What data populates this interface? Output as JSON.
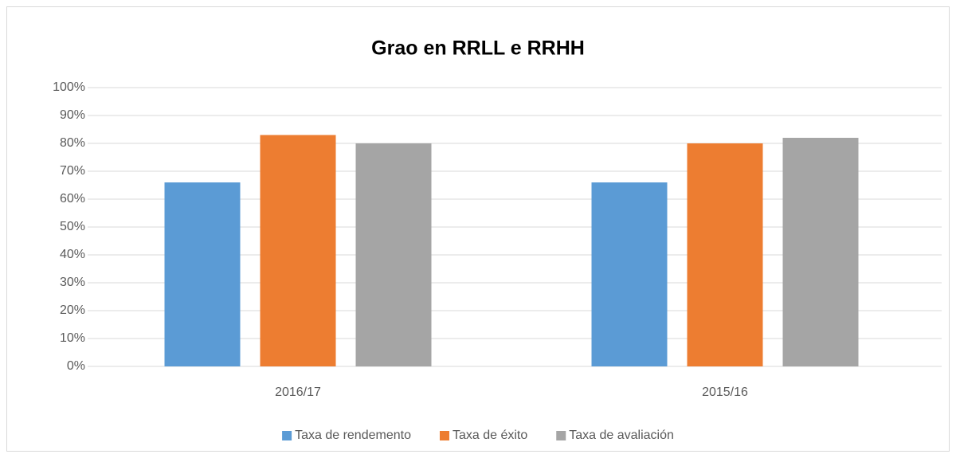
{
  "chart_data": {
    "type": "bar",
    "title": "Grao en RRLL e RRHH",
    "categories": [
      "2016/17",
      "2015/16"
    ],
    "series": [
      {
        "name": "Taxa de rendemento",
        "color": "#5b9bd5",
        "values": [
          66,
          66
        ]
      },
      {
        "name": "Taxa de éxito",
        "color": "#ed7d31",
        "values": [
          83,
          80
        ]
      },
      {
        "name": "Taxa de avaliación",
        "color": "#a5a5a5",
        "values": [
          80,
          82
        ]
      }
    ],
    "ylim": [
      0,
      100
    ],
    "yticks": [
      {
        "value": 0,
        "label": "0%"
      },
      {
        "value": 10,
        "label": "10%"
      },
      {
        "value": 20,
        "label": "20%"
      },
      {
        "value": 30,
        "label": "30%"
      },
      {
        "value": 40,
        "label": "40%"
      },
      {
        "value": 50,
        "label": "50%"
      },
      {
        "value": 60,
        "label": "60%"
      },
      {
        "value": 70,
        "label": "70%"
      },
      {
        "value": 80,
        "label": "80%"
      },
      {
        "value": 90,
        "label": "90%"
      },
      {
        "value": 100,
        "label": "100%"
      }
    ],
    "grid": true,
    "legend": "bottom"
  }
}
